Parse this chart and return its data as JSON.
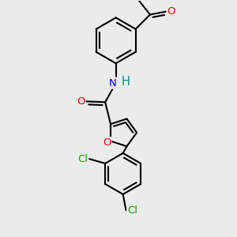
{
  "background_color": "#ebebeb",
  "bond_color": "#000000",
  "bond_width": 1.5,
  "atom_colors": {
    "O": "#ff0000",
    "N": "#0000cc",
    "Cl": "#00aa00",
    "H": "#008888"
  },
  "font_size": 9.5,
  "fig_size": [
    3.0,
    3.0
  ],
  "dpi": 100
}
